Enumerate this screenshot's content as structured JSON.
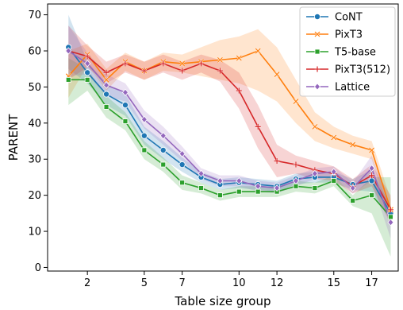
{
  "chart_data": {
    "type": "line",
    "xlabel": "Table size group",
    "ylabel": "PARENT",
    "xlim": [
      -0.1,
      18.4
    ],
    "ylim": [
      -1,
      73
    ],
    "xticks": [
      {
        "value": 2,
        "label": "2"
      },
      {
        "value": 5,
        "label": "5"
      },
      {
        "value": 7,
        "label": "7"
      },
      {
        "value": 10,
        "label": "10"
      },
      {
        "value": 12,
        "label": "12"
      },
      {
        "value": 15,
        "label": "15"
      },
      {
        "value": 17,
        "label": "17"
      }
    ],
    "yticks": [
      0,
      10,
      20,
      30,
      40,
      50,
      60,
      70
    ],
    "legend_position": "top-right",
    "x": [
      1,
      2,
      3,
      4,
      5,
      6,
      7,
      8,
      9,
      10,
      11,
      12,
      13,
      14,
      15,
      16,
      17,
      18
    ],
    "series": [
      {
        "name": "CoNT",
        "color": "#1f77b4",
        "marker": "circle",
        "values": [
          61,
          54,
          48,
          45,
          36.5,
          32.5,
          28.5,
          25,
          23,
          23.5,
          23,
          22.5,
          24.5,
          25,
          25,
          23,
          24,
          15
        ],
        "lower": [
          55,
          51,
          45,
          42,
          34,
          30,
          26.5,
          23.5,
          21.5,
          22,
          21.5,
          21,
          23,
          23.5,
          23.5,
          21.5,
          21,
          13
        ],
        "upper": [
          70,
          57,
          51,
          48,
          39,
          35,
          30.5,
          26.5,
          24.5,
          25,
          24.5,
          24,
          26,
          26.5,
          26.5,
          24.5,
          27,
          17
        ]
      },
      {
        "name": "PixT3",
        "color": "#ff7f0e",
        "marker": "x",
        "values": [
          53,
          59,
          52,
          57,
          54.5,
          57,
          56.5,
          57,
          57.5,
          58,
          60,
          53.5,
          46,
          39,
          36,
          34,
          32.5,
          16
        ],
        "lower": [
          47,
          56,
          49,
          54.5,
          52,
          54.5,
          54,
          53,
          52,
          51,
          49,
          46,
          40,
          35,
          33,
          31.5,
          30,
          13
        ],
        "upper": [
          60,
          62,
          55,
          59.5,
          57,
          59.5,
          59,
          61,
          63,
          64,
          66,
          61,
          52,
          43,
          39,
          36.5,
          35,
          19
        ]
      },
      {
        "name": "T5-base",
        "color": "#2ca02c",
        "marker": "square",
        "values": [
          52,
          52,
          44.5,
          40.5,
          32.5,
          28.5,
          23.5,
          22,
          20,
          21,
          21,
          21,
          22.5,
          22,
          24,
          18.5,
          20,
          14
        ],
        "lower": [
          45,
          49,
          41.5,
          38,
          30,
          26.5,
          21.5,
          20.5,
          18.5,
          19.5,
          19.5,
          19.5,
          21,
          20.5,
          22.5,
          17,
          15,
          3
        ],
        "upper": [
          58,
          55,
          47.5,
          43,
          35,
          30.5,
          25.5,
          23.5,
          21.5,
          22.5,
          22.5,
          22.5,
          24,
          23.5,
          25.5,
          20,
          25,
          25
        ]
      },
      {
        "name": "PixT3(512)",
        "color": "#d62728",
        "marker": "plus",
        "values": [
          60,
          58.5,
          54,
          56.5,
          54.5,
          56.5,
          54.5,
          56.5,
          54.5,
          49,
          39,
          29.5,
          28.5,
          27,
          26,
          22.5,
          25.5,
          16
        ],
        "lower": [
          52,
          55.5,
          51,
          54,
          52,
          54,
          52,
          54,
          51.5,
          44,
          33,
          25,
          26,
          24.5,
          24,
          20.5,
          22.5,
          12
        ],
        "upper": [
          67,
          61.5,
          57,
          59,
          57,
          59,
          57,
          59,
          57.5,
          54,
          45,
          34,
          31,
          29.5,
          28,
          24.5,
          28.5,
          20
        ]
      },
      {
        "name": "Lattice",
        "color": "#9467bd",
        "marker": "diamond",
        "values": [
          60,
          56.5,
          50.5,
          48.5,
          41,
          36.5,
          31.5,
          26,
          24,
          24,
          22.5,
          22,
          24,
          26,
          26.5,
          22,
          27.5,
          12.5
        ],
        "lower": [
          53,
          53.5,
          47.5,
          46,
          38.5,
          34,
          29.5,
          24.5,
          22.5,
          22.5,
          21,
          20.5,
          22.5,
          24.5,
          25,
          20.5,
          24,
          8
        ],
        "upper": [
          67,
          59.5,
          53.5,
          51,
          43.5,
          39,
          33.5,
          27.5,
          25.5,
          25.5,
          24,
          23.5,
          25.5,
          27.5,
          28,
          23.5,
          31,
          17
        ]
      }
    ]
  }
}
